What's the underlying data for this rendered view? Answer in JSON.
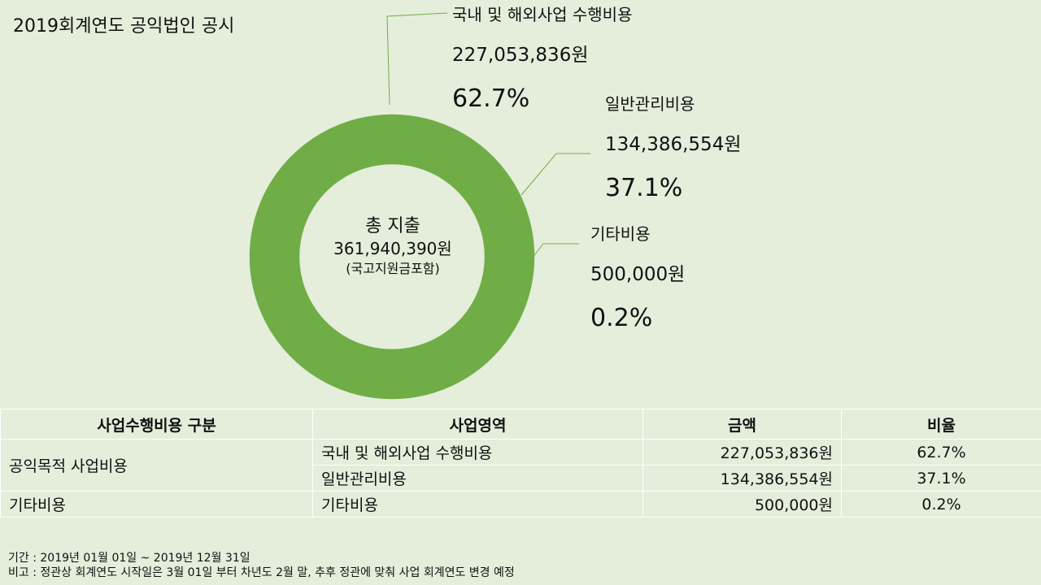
{
  "title": "2019회계연도 공익법인 공시",
  "chart_data": {
    "type": "pie",
    "style": "donut",
    "color": "#70ad47",
    "categories": [
      "국내 및 해외사업 수행비용",
      "일반관리비용",
      "기타비용"
    ],
    "values": [
      227053836,
      134386554,
      500000
    ],
    "amount_labels": [
      "227,053,836원",
      "134,386,554원",
      "500,000원"
    ],
    "percent_labels": [
      "62.7%",
      "37.1%",
      "0.2%"
    ],
    "center": {
      "line1": "총 지출",
      "line2": "361,940,390원",
      "line3": "(국고지원금포함)"
    }
  },
  "table": {
    "headers": [
      "사업수행비용 구분",
      "사업영역",
      "금액",
      "비율"
    ],
    "group1": "공익목적 사업비용",
    "group2": "기타비용",
    "rows": [
      {
        "area": "국내 및 해외사업 수행비용",
        "amount": "227,053,836원",
        "ratio": "62.7%"
      },
      {
        "area": "일반관리비용",
        "amount": "134,386,554원",
        "ratio": "37.1%"
      },
      {
        "area": "기타비용",
        "amount": "500,000원",
        "ratio": "0.2%"
      }
    ]
  },
  "footer": {
    "period": "기간 : 2019년 01월 01일 ~ 2019년 12월 31일",
    "note": "비고 : 정관상 회계연도 시작일은 3월 01일 부터 차년도 2월 말, 추후 정관에 맞춰 사업 회계연도 변경 예정"
  }
}
